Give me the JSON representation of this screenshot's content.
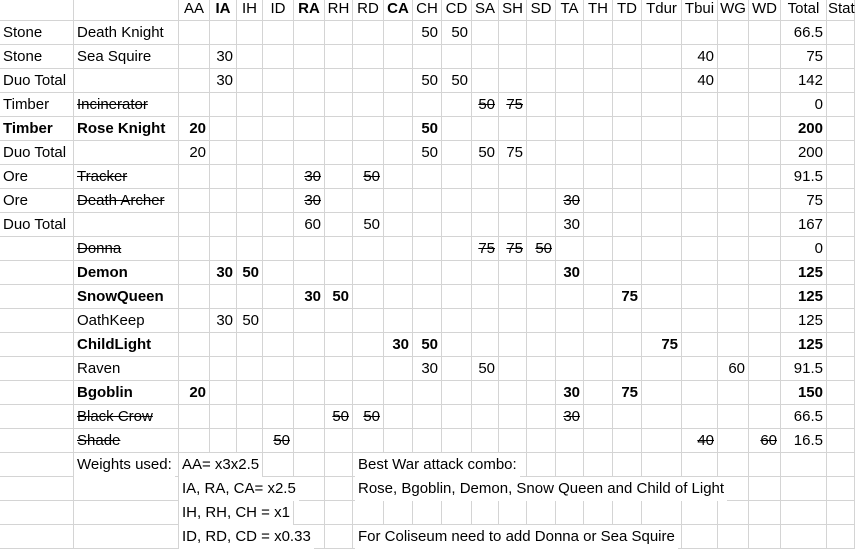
{
  "header": [
    "",
    "",
    "AA",
    "IA",
    "IH",
    "ID",
    "RA",
    "RH",
    "RD",
    "CA",
    "CH",
    "CD",
    "SA",
    "SH",
    "SD",
    "TA",
    "TH",
    "TD",
    "Tdur",
    "Tbui",
    "WG",
    "WD",
    "Total",
    "Stat"
  ],
  "header_bold": [
    false,
    false,
    false,
    true,
    false,
    false,
    true,
    false,
    false,
    true,
    false,
    false,
    false,
    false,
    false,
    false,
    false,
    false,
    false,
    false,
    false,
    false,
    false,
    false
  ],
  "rows": [
    {
      "bold": false,
      "strike": false,
      "cells": [
        "Stone",
        "Death Knight",
        "",
        "",
        "",
        "",
        "",
        "",
        "",
        "",
        "50",
        "50",
        "",
        "",
        "",
        "",
        "",
        "",
        "",
        "",
        "",
        "",
        "66.5",
        ""
      ]
    },
    {
      "bold": false,
      "strike": false,
      "cells": [
        "Stone",
        " Sea Squire",
        "",
        "30",
        "",
        "",
        "",
        "",
        "",
        "",
        "",
        "",
        "",
        "",
        "",
        "",
        "",
        "",
        "",
        "40",
        "",
        "",
        "75",
        ""
      ]
    },
    {
      "bold": false,
      "strike": false,
      "cells": [
        "Duo Total",
        "",
        "",
        "30",
        "",
        "",
        "",
        "",
        "",
        "",
        "50",
        "50",
        "",
        "",
        "",
        "",
        "",
        "",
        "",
        "40",
        "",
        "",
        "142",
        ""
      ]
    },
    {
      "bold": false,
      "strike": true,
      "cells": [
        "Timber",
        "Incinerator",
        "",
        "",
        "",
        "",
        "",
        "",
        "",
        "",
        "",
        "",
        "50",
        "75",
        "",
        "",
        "",
        "",
        "",
        "",
        "",
        "",
        "0",
        ""
      ]
    },
    {
      "bold": true,
      "strike": false,
      "cells": [
        "Timber",
        " Rose Knight",
        "20",
        "",
        "",
        "",
        "",
        "",
        "",
        "",
        "50",
        "",
        "",
        "",
        "",
        "",
        "",
        "",
        "",
        "",
        "",
        "",
        "200",
        ""
      ]
    },
    {
      "bold": false,
      "strike": false,
      "cells": [
        "Duo Total",
        "",
        "20",
        "",
        "",
        "",
        "",
        "",
        "",
        "",
        "50",
        "",
        "50",
        "75",
        "",
        "",
        "",
        "",
        "",
        "",
        "",
        "",
        "200",
        ""
      ]
    },
    {
      "bold": false,
      "strike": true,
      "cells": [
        "Ore",
        "Tracker",
        "",
        "",
        "",
        "",
        "30",
        "",
        "50",
        "",
        "",
        "",
        "",
        "",
        "",
        "",
        "",
        "",
        "",
        "",
        "",
        "",
        "91.5",
        ""
      ]
    },
    {
      "bold": false,
      "strike": true,
      "cells": [
        "Ore",
        "Death Archer",
        "",
        "",
        "",
        "",
        "30",
        "",
        "",
        "",
        "",
        "",
        "",
        "",
        "",
        "30",
        "",
        "",
        "",
        "",
        "",
        "",
        "75",
        ""
      ]
    },
    {
      "bold": false,
      "strike": false,
      "cells": [
        "Duo Total",
        "",
        "",
        "",
        "",
        "",
        "60",
        "",
        "50",
        "",
        "",
        "",
        "",
        "",
        "",
        "30",
        "",
        "",
        "",
        "",
        "",
        "",
        "167",
        ""
      ]
    },
    {
      "bold": false,
      "strike": true,
      "cells": [
        "",
        "Donna",
        "",
        "",
        "",
        "",
        "",
        "",
        "",
        "",
        "",
        "",
        "75",
        "75",
        "50",
        "",
        "",
        "",
        "",
        "",
        "",
        "",
        "0",
        ""
      ]
    },
    {
      "bold": true,
      "strike": false,
      "cells": [
        "",
        "Demon",
        "",
        "30",
        "50",
        "",
        "",
        "",
        "",
        "",
        "",
        "",
        "",
        "",
        "",
        "30",
        "",
        "",
        "",
        "",
        "",
        "",
        "125",
        ""
      ]
    },
    {
      "bold": true,
      "strike": false,
      "cells": [
        "",
        "SnowQueen",
        "",
        "",
        "",
        "",
        "30",
        "50",
        "",
        "",
        "",
        "",
        "",
        "",
        "",
        "",
        "",
        "75",
        "",
        "",
        "",
        "",
        "125",
        ""
      ]
    },
    {
      "bold": false,
      "strike": false,
      "cells": [
        "",
        "OathKeep",
        "",
        "30",
        "50",
        "",
        "",
        "",
        "",
        "",
        "",
        "",
        "",
        "",
        "",
        "",
        "",
        "",
        "",
        "",
        "",
        "",
        "125",
        ""
      ]
    },
    {
      "bold": true,
      "strike": false,
      "cells": [
        "",
        "ChildLight",
        "",
        "",
        "",
        "",
        "",
        "",
        "",
        "30",
        "50",
        "",
        "",
        "",
        "",
        "",
        "",
        "",
        "75",
        "",
        "",
        "",
        "125",
        ""
      ]
    },
    {
      "bold": false,
      "strike": false,
      "cells": [
        "",
        "Raven",
        "",
        "",
        "",
        "",
        "",
        "",
        "",
        "",
        "30",
        "",
        "50",
        "",
        "",
        "",
        "",
        "",
        "",
        "",
        "60",
        "",
        "91.5",
        ""
      ]
    },
    {
      "bold": true,
      "strike": false,
      "cells": [
        "",
        "Bgoblin",
        "20",
        "",
        "",
        "",
        "",
        "",
        "",
        "",
        "",
        "",
        "",
        "",
        "",
        "30",
        "",
        "75",
        "",
        "",
        "",
        "",
        "150",
        ""
      ]
    },
    {
      "bold": false,
      "strike": true,
      "cells": [
        "",
        "Black Crow",
        "",
        "",
        "",
        "",
        "",
        "50",
        "50",
        "",
        "",
        "",
        "",
        "",
        "",
        "30",
        "",
        "",
        "",
        "",
        "",
        "",
        "66.5",
        ""
      ]
    },
    {
      "bold": false,
      "strike": true,
      "cells": [
        "",
        "Shade",
        "",
        "",
        "",
        "50",
        "",
        "",
        "",
        "",
        "",
        "",
        "",
        "",
        "",
        "",
        "",
        "",
        "",
        "40",
        "",
        "60",
        "16.5",
        ""
      ]
    }
  ],
  "notes": {
    "weights_label": "Weights used:",
    "weights": [
      "AA= x3x2.5",
      "IA, RA, CA= x2.5",
      "IH, RH, CH = x1",
      "ID, RD, CD = x0.33"
    ],
    "combo_title": "Best War attack combo:",
    "combo_text": "Rose, Bgoblin, Demon,  Snow Queen and Child of Light",
    "coliseum": "For Coliseum need to add Donna or Sea Squire"
  }
}
